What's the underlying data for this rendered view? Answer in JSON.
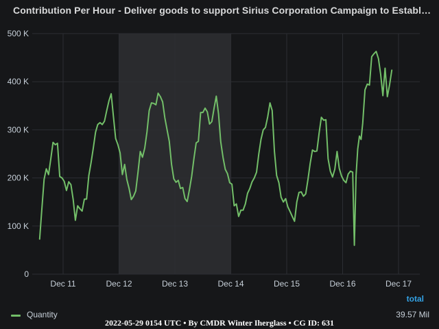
{
  "panel": {
    "title": "Contribution Per Hour - Deliver goods to support Sirius Corporation Campaign to Establish Ma..."
  },
  "legend": {
    "header": "total",
    "series_name": "Quantity",
    "series_total": "39.57 Mil"
  },
  "footer": {
    "text": "2022-05-29 0154 UTC • By CMDR Winter Iherglass • CG ID: 631"
  },
  "colors": {
    "background": "#161719",
    "grid": "#2c2e33",
    "series": "#73bf69",
    "highlight_band": "#2a2b2e",
    "legend_header": "#33a2e5"
  },
  "chart_data": {
    "type": "line",
    "title": "Contribution Per Hour - Deliver goods to support Sirius Corporation Campaign to Establish Ma...",
    "xlabel": "",
    "ylabel": "",
    "grid": true,
    "legend_placement": "bottom",
    "x_ticks": [
      "Dec 11",
      "Dec 12",
      "Dec 13",
      "Dec 14",
      "Dec 15",
      "Dec 16",
      "Dec 17"
    ],
    "y_ticks": [
      "0",
      "100 K",
      "200 K",
      "300 K",
      "400 K",
      "500 K"
    ],
    "y_tick_values": [
      0,
      100000,
      200000,
      300000,
      400000,
      500000
    ],
    "ylim": [
      0,
      500000
    ],
    "x_unit": "days since Dec 11 00:00",
    "xlim": [
      -0.42,
      6.35
    ],
    "highlight_range": [
      1.0,
      2.0
    ],
    "series": [
      {
        "name": "Quantity",
        "total": "39.57 Mil",
        "points": [
          [
            -0.42,
            73000
          ],
          [
            -0.38,
            135000
          ],
          [
            -0.34,
            197000
          ],
          [
            -0.3,
            219000
          ],
          [
            -0.26,
            207000
          ],
          [
            -0.22,
            240000
          ],
          [
            -0.18,
            274000
          ],
          [
            -0.14,
            269000
          ],
          [
            -0.1,
            272000
          ],
          [
            -0.06,
            203000
          ],
          [
            -0.02,
            200000
          ],
          [
            0.02,
            193000
          ],
          [
            0.06,
            174000
          ],
          [
            0.1,
            192000
          ],
          [
            0.14,
            186000
          ],
          [
            0.18,
            155000
          ],
          [
            0.22,
            112000
          ],
          [
            0.26,
            142000
          ],
          [
            0.3,
            136000
          ],
          [
            0.34,
            131000
          ],
          [
            0.38,
            156000
          ],
          [
            0.42,
            156000
          ],
          [
            0.46,
            205000
          ],
          [
            0.5,
            232000
          ],
          [
            0.54,
            262000
          ],
          [
            0.58,
            295000
          ],
          [
            0.62,
            311000
          ],
          [
            0.66,
            315000
          ],
          [
            0.7,
            311000
          ],
          [
            0.74,
            318000
          ],
          [
            0.78,
            340000
          ],
          [
            0.82,
            360000
          ],
          [
            0.86,
            375000
          ],
          [
            0.9,
            327000
          ],
          [
            0.94,
            282000
          ],
          [
            0.98,
            269000
          ],
          [
            1.02,
            252000
          ],
          [
            1.06,
            207000
          ],
          [
            1.1,
            228000
          ],
          [
            1.14,
            197000
          ],
          [
            1.18,
            178000
          ],
          [
            1.22,
            155000
          ],
          [
            1.26,
            162000
          ],
          [
            1.3,
            173000
          ],
          [
            1.34,
            212000
          ],
          [
            1.38,
            255000
          ],
          [
            1.42,
            243000
          ],
          [
            1.46,
            262000
          ],
          [
            1.5,
            296000
          ],
          [
            1.54,
            340000
          ],
          [
            1.58,
            356000
          ],
          [
            1.62,
            355000
          ],
          [
            1.66,
            352000
          ],
          [
            1.7,
            376000
          ],
          [
            1.74,
            369000
          ],
          [
            1.78,
            358000
          ],
          [
            1.82,
            325000
          ],
          [
            1.86,
            300000
          ],
          [
            1.9,
            276000
          ],
          [
            1.94,
            228000
          ],
          [
            1.98,
            198000
          ],
          [
            2.02,
            191000
          ],
          [
            2.06,
            195000
          ],
          [
            2.1,
            178000
          ],
          [
            2.14,
            180000
          ],
          [
            2.18,
            157000
          ],
          [
            2.22,
            151000
          ],
          [
            2.26,
            176000
          ],
          [
            2.3,
            203000
          ],
          [
            2.34,
            240000
          ],
          [
            2.38,
            273000
          ],
          [
            2.42,
            276000
          ],
          [
            2.46,
            336000
          ],
          [
            2.5,
            336000
          ],
          [
            2.54,
            345000
          ],
          [
            2.58,
            337000
          ],
          [
            2.62,
            312000
          ],
          [
            2.66,
            317000
          ],
          [
            2.7,
            345000
          ],
          [
            2.74,
            370000
          ],
          [
            2.78,
            333000
          ],
          [
            2.82,
            275000
          ],
          [
            2.86,
            243000
          ],
          [
            2.9,
            218000
          ],
          [
            2.94,
            209000
          ],
          [
            2.98,
            190000
          ],
          [
            3.02,
            187000
          ],
          [
            3.06,
            142000
          ],
          [
            3.1,
            146000
          ],
          [
            3.14,
            120000
          ],
          [
            3.18,
            133000
          ],
          [
            3.22,
            133000
          ],
          [
            3.26,
            146000
          ],
          [
            3.3,
            168000
          ],
          [
            3.34,
            178000
          ],
          [
            3.38,
            192000
          ],
          [
            3.42,
            200000
          ],
          [
            3.46,
            212000
          ],
          [
            3.5,
            250000
          ],
          [
            3.54,
            280000
          ],
          [
            3.58,
            300000
          ],
          [
            3.62,
            305000
          ],
          [
            3.66,
            327000
          ],
          [
            3.7,
            356000
          ],
          [
            3.74,
            340000
          ],
          [
            3.78,
            255000
          ],
          [
            3.82,
            205000
          ],
          [
            3.86,
            190000
          ],
          [
            3.9,
            160000
          ],
          [
            3.94,
            150000
          ],
          [
            3.98,
            157000
          ],
          [
            4.02,
            140000
          ],
          [
            4.06,
            130000
          ],
          [
            4.1,
            120000
          ],
          [
            4.14,
            110000
          ],
          [
            4.18,
            150000
          ],
          [
            4.22,
            170000
          ],
          [
            4.26,
            171000
          ],
          [
            4.3,
            162000
          ],
          [
            4.34,
            167000
          ],
          [
            4.38,
            197000
          ],
          [
            4.42,
            230000
          ],
          [
            4.46,
            258000
          ],
          [
            4.5,
            255000
          ],
          [
            4.54,
            256000
          ],
          [
            4.58,
            294000
          ],
          [
            4.62,
            326000
          ],
          [
            4.66,
            320000
          ],
          [
            4.7,
            321000
          ],
          [
            4.74,
            240000
          ],
          [
            4.78,
            214000
          ],
          [
            4.82,
            202000
          ],
          [
            4.86,
            218000
          ],
          [
            4.9,
            255000
          ],
          [
            4.94,
            220000
          ],
          [
            4.98,
            204000
          ],
          [
            5.02,
            195000
          ],
          [
            5.06,
            190000
          ],
          [
            5.1,
            208000
          ],
          [
            5.14,
            214000
          ],
          [
            5.18,
            212000
          ],
          [
            5.21,
            60000
          ],
          [
            5.24,
            205000
          ],
          [
            5.27,
            260000
          ],
          [
            5.3,
            287000
          ],
          [
            5.33,
            280000
          ],
          [
            5.36,
            314000
          ],
          [
            5.4,
            383000
          ],
          [
            5.44,
            395000
          ],
          [
            5.48,
            393000
          ],
          [
            5.52,
            452000
          ],
          [
            5.56,
            458000
          ],
          [
            5.6,
            463000
          ],
          [
            5.64,
            448000
          ],
          [
            5.68,
            416000
          ],
          [
            5.72,
            371000
          ],
          [
            5.76,
            428000
          ],
          [
            5.8,
            369000
          ],
          [
            5.84,
            394000
          ],
          [
            5.88,
            424000
          ]
        ]
      }
    ]
  }
}
